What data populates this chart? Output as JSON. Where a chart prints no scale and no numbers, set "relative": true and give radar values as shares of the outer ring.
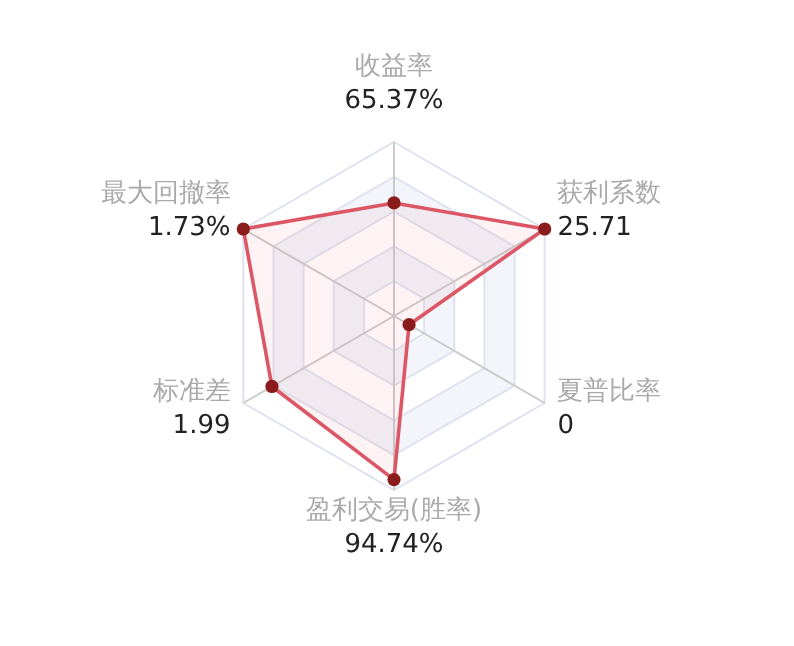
{
  "chart_data": {
    "type": "radar",
    "relative": true,
    "grid": true,
    "marker": "circle",
    "categories": [
      "收益率",
      "获利系数",
      "夏普比率",
      "盈利交易(胜率)",
      "标准差",
      "最大回撤率"
    ],
    "series": [
      {
        "color": "#dc5766",
        "colors": [
          "#8b1c1c",
          "#8b1c1c",
          "#8b1c1c",
          "#8b1c1c",
          "#8b1c1c",
          "#8b1c1c"
        ],
        "values": [
          0.65,
          1.0,
          0.1,
          0.94,
          0.81,
          1.0
        ]
      }
    ],
    "annotations": [
      "65.37%",
      "25.71",
      "0",
      "94.74%",
      "1.99",
      "1.73%"
    ]
  }
}
